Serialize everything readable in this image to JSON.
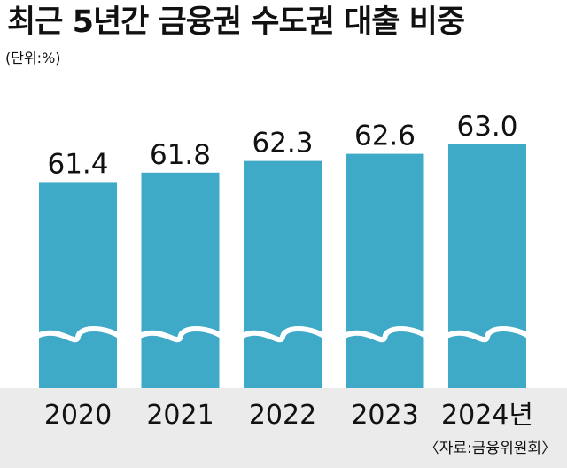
{
  "title": "최근 5년간 금융권 수도권 대출 비중",
  "unit": "(단위:%)",
  "source": "〈자료:금융위원회〉",
  "colors": {
    "bar": "#3eaac8",
    "band": "#ebebeb",
    "text": "#111111"
  },
  "chart_data": {
    "type": "bar",
    "title": "최근 5년간 금융권 수도권 대출 비중",
    "ylabel": "",
    "xlabel": "",
    "axis_break": true,
    "categories": [
      "2020",
      "2021",
      "2022",
      "2023",
      "2024년"
    ],
    "values": [
      61.4,
      61.8,
      62.3,
      62.6,
      63.0
    ],
    "value_labels": [
      "61.4",
      "61.8",
      "62.3",
      "62.6",
      "63.0"
    ]
  }
}
